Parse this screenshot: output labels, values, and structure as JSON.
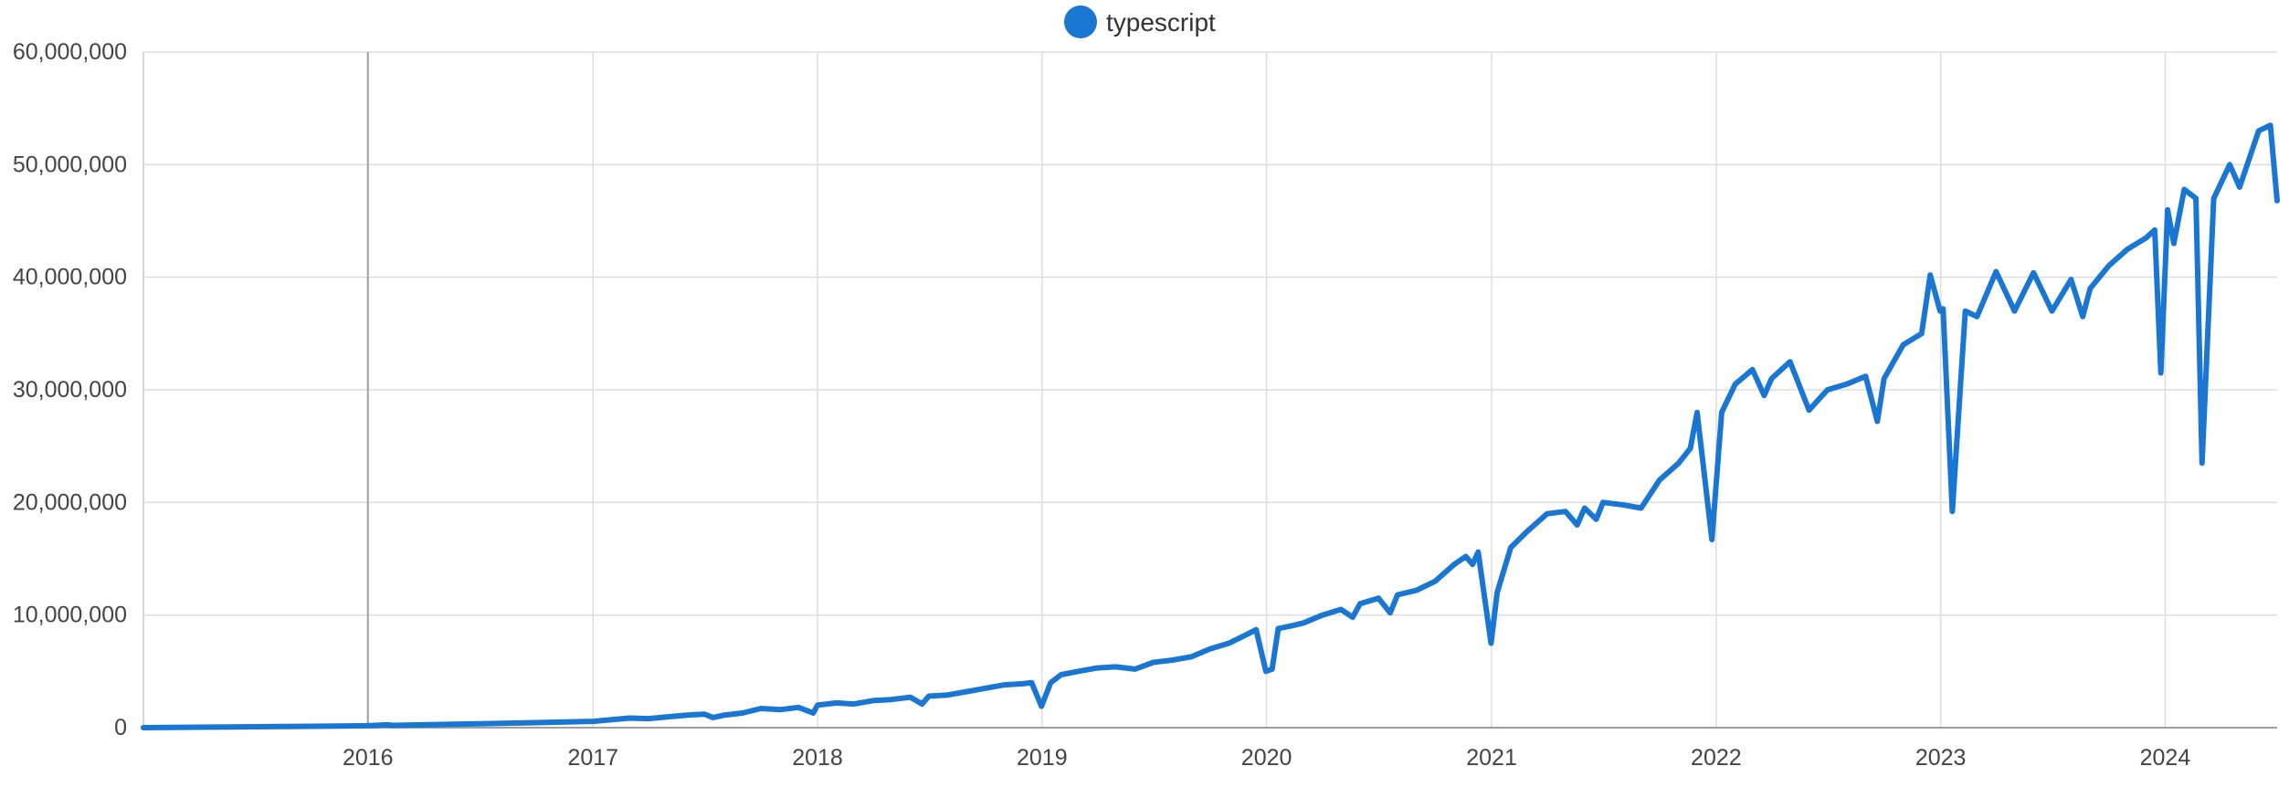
{
  "chart_data": {
    "type": "line",
    "title": "",
    "xlabel": "",
    "ylabel": "",
    "legend_position": "top-center",
    "grid": true,
    "series_color": "#1976d2",
    "series": [
      {
        "name": "typescript",
        "points": [
          [
            "2015-01-01",
            0
          ],
          [
            "2015-04-01",
            40000
          ],
          [
            "2015-07-01",
            80000
          ],
          [
            "2015-10-01",
            120000
          ],
          [
            "2016-01-01",
            170000
          ],
          [
            "2016-02-01",
            250000
          ],
          [
            "2016-02-10",
            200000
          ],
          [
            "2016-04-01",
            250000
          ],
          [
            "2016-07-01",
            350000
          ],
          [
            "2016-10-01",
            450000
          ],
          [
            "2017-01-01",
            560000
          ],
          [
            "2017-03-01",
            850000
          ],
          [
            "2017-04-01",
            800000
          ],
          [
            "2017-06-01",
            1100000
          ],
          [
            "2017-07-01",
            1200000
          ],
          [
            "2017-07-15",
            900000
          ],
          [
            "2017-08-01",
            1100000
          ],
          [
            "2017-09-01",
            1300000
          ],
          [
            "2017-10-01",
            1700000
          ],
          [
            "2017-11-01",
            1600000
          ],
          [
            "2017-12-01",
            1800000
          ],
          [
            "2017-12-25",
            1300000
          ],
          [
            "2018-01-01",
            2000000
          ],
          [
            "2018-02-01",
            2200000
          ],
          [
            "2018-03-01",
            2100000
          ],
          [
            "2018-04-01",
            2400000
          ],
          [
            "2018-05-01",
            2500000
          ],
          [
            "2018-06-01",
            2700000
          ],
          [
            "2018-06-20",
            2100000
          ],
          [
            "2018-07-01",
            2800000
          ],
          [
            "2018-08-01",
            2900000
          ],
          [
            "2018-09-01",
            3200000
          ],
          [
            "2018-10-01",
            3500000
          ],
          [
            "2018-11-01",
            3800000
          ],
          [
            "2018-12-01",
            3900000
          ],
          [
            "2018-12-15",
            4000000
          ],
          [
            "2018-12-31",
            1900000
          ],
          [
            "2019-01-15",
            4000000
          ],
          [
            "2019-02-01",
            4700000
          ],
          [
            "2019-03-01",
            5000000
          ],
          [
            "2019-04-01",
            5300000
          ],
          [
            "2019-05-01",
            5400000
          ],
          [
            "2019-06-01",
            5200000
          ],
          [
            "2019-07-01",
            5800000
          ],
          [
            "2019-08-01",
            6000000
          ],
          [
            "2019-09-01",
            6300000
          ],
          [
            "2019-10-01",
            7000000
          ],
          [
            "2019-11-01",
            7500000
          ],
          [
            "2019-12-01",
            8300000
          ],
          [
            "2019-12-15",
            8700000
          ],
          [
            "2019-12-31",
            5000000
          ],
          [
            "2020-01-10",
            5200000
          ],
          [
            "2020-01-20",
            8800000
          ],
          [
            "2020-02-15",
            9100000
          ],
          [
            "2020-03-01",
            9300000
          ],
          [
            "2020-04-01",
            10000000
          ],
          [
            "2020-05-01",
            10500000
          ],
          [
            "2020-05-20",
            9800000
          ],
          [
            "2020-06-01",
            11000000
          ],
          [
            "2020-07-01",
            11500000
          ],
          [
            "2020-07-20",
            10200000
          ],
          [
            "2020-08-01",
            11800000
          ],
          [
            "2020-09-01",
            12200000
          ],
          [
            "2020-10-01",
            13000000
          ],
          [
            "2020-11-01",
            14500000
          ],
          [
            "2020-11-20",
            15200000
          ],
          [
            "2020-12-01",
            14500000
          ],
          [
            "2020-12-10",
            15600000
          ],
          [
            "2020-12-31",
            7500000
          ],
          [
            "2021-01-10",
            12000000
          ],
          [
            "2021-02-01",
            16000000
          ],
          [
            "2021-03-01",
            17500000
          ],
          [
            "2021-04-01",
            19000000
          ],
          [
            "2021-05-01",
            19200000
          ],
          [
            "2021-05-20",
            18000000
          ],
          [
            "2021-06-01",
            19500000
          ],
          [
            "2021-06-20",
            18500000
          ],
          [
            "2021-07-01",
            20000000
          ],
          [
            "2021-08-01",
            19800000
          ],
          [
            "2021-09-01",
            19500000
          ],
          [
            "2021-10-01",
            22000000
          ],
          [
            "2021-11-01",
            23500000
          ],
          [
            "2021-11-20",
            24800000
          ],
          [
            "2021-12-01",
            28000000
          ],
          [
            "2021-12-25",
            16700000
          ],
          [
            "2022-01-10",
            28000000
          ],
          [
            "2022-02-01",
            30500000
          ],
          [
            "2022-03-01",
            31800000
          ],
          [
            "2022-03-20",
            29500000
          ],
          [
            "2022-04-01",
            31000000
          ],
          [
            "2022-05-01",
            32500000
          ],
          [
            "2022-06-01",
            28200000
          ],
          [
            "2022-07-01",
            30000000
          ],
          [
            "2022-08-01",
            30500000
          ],
          [
            "2022-09-01",
            31200000
          ],
          [
            "2022-09-20",
            27200000
          ],
          [
            "2022-10-01",
            31000000
          ],
          [
            "2022-11-01",
            34000000
          ],
          [
            "2022-12-01",
            35000000
          ],
          [
            "2022-12-15",
            40200000
          ],
          [
            "2022-12-31",
            37000000
          ],
          [
            "2023-01-05",
            37200000
          ],
          [
            "2023-01-20",
            19200000
          ],
          [
            "2023-02-10",
            37000000
          ],
          [
            "2023-03-01",
            36500000
          ],
          [
            "2023-04-01",
            40500000
          ],
          [
            "2023-05-01",
            37000000
          ],
          [
            "2023-06-01",
            40400000
          ],
          [
            "2023-07-01",
            37000000
          ],
          [
            "2023-08-01",
            39800000
          ],
          [
            "2023-08-20",
            36500000
          ],
          [
            "2023-09-01",
            39000000
          ],
          [
            "2023-10-01",
            41000000
          ],
          [
            "2023-11-01",
            42500000
          ],
          [
            "2023-12-01",
            43500000
          ],
          [
            "2023-12-15",
            44200000
          ],
          [
            "2023-12-25",
            31500000
          ],
          [
            "2024-01-05",
            46000000
          ],
          [
            "2024-01-15",
            43000000
          ],
          [
            "2024-02-01",
            47800000
          ],
          [
            "2024-02-20",
            47000000
          ],
          [
            "2024-03-01",
            23500000
          ],
          [
            "2024-03-20",
            47000000
          ],
          [
            "2024-04-15",
            50000000
          ],
          [
            "2024-05-01",
            48000000
          ],
          [
            "2024-06-01",
            53000000
          ],
          [
            "2024-06-20",
            53500000
          ],
          [
            "2024-07-01",
            46800000
          ]
        ]
      }
    ],
    "y_ticks": [
      {
        "value": 0,
        "label": "0"
      },
      {
        "value": 10000000,
        "label": "10,000,000"
      },
      {
        "value": 20000000,
        "label": "20,000,000"
      },
      {
        "value": 30000000,
        "label": "30,000,000"
      },
      {
        "value": 40000000,
        "label": "40,000,000"
      },
      {
        "value": 50000000,
        "label": "50,000,000"
      },
      {
        "value": 60000000,
        "label": "60,000,000"
      }
    ],
    "x_ticks": [
      {
        "date": "2016-01-01",
        "label": "2016"
      },
      {
        "date": "2017-01-01",
        "label": "2017"
      },
      {
        "date": "2018-01-01",
        "label": "2018"
      },
      {
        "date": "2019-01-01",
        "label": "2019"
      },
      {
        "date": "2020-01-01",
        "label": "2020"
      },
      {
        "date": "2021-01-01",
        "label": "2021"
      },
      {
        "date": "2022-01-01",
        "label": "2022"
      },
      {
        "date": "2023-01-01",
        "label": "2023"
      },
      {
        "date": "2024-01-01",
        "label": "2024"
      }
    ],
    "xlim": [
      "2015-01-01",
      "2024-07-01"
    ],
    "ylim": [
      0,
      60000000
    ]
  }
}
